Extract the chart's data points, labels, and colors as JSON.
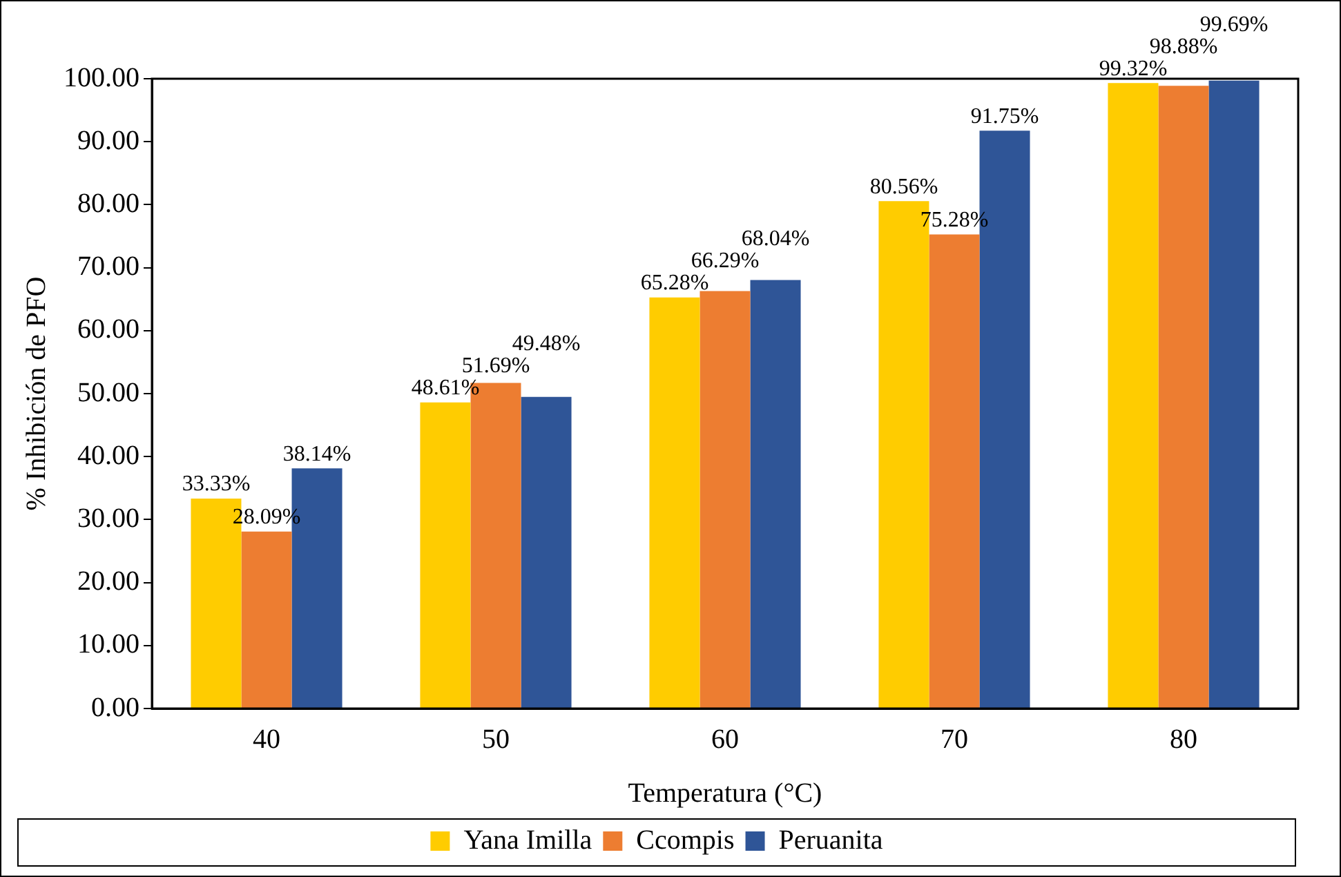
{
  "chart_data": {
    "type": "bar",
    "xlabel": "Temperatura (°C)",
    "ylabel": "% Inhibición de PFO",
    "categories": [
      "40",
      "50",
      "60",
      "70",
      "80"
    ],
    "series": [
      {
        "name": "Yana Imilla",
        "color": "#ffcc00",
        "values": [
          33.33,
          48.61,
          65.28,
          80.56,
          99.32
        ],
        "value_labels": [
          "33.33%",
          "48.61%",
          "65.28%",
          "80.56%",
          "99.32%"
        ]
      },
      {
        "name": "Ccompis",
        "color": "#ed7d31",
        "values": [
          28.09,
          51.69,
          66.29,
          75.28,
          98.88
        ],
        "value_labels": [
          "28.09%",
          "51.69%",
          "66.29%",
          "75.28%",
          "98.88%"
        ]
      },
      {
        "name": "Peruanita",
        "color": "#2f5597",
        "values": [
          38.14,
          49.48,
          68.04,
          91.75,
          99.69
        ],
        "value_labels": [
          "38.14%",
          "49.48%",
          "68.04%",
          "91.75%",
          "99.69%"
        ]
      }
    ],
    "ylim": [
      0,
      100
    ],
    "yticks": [
      {
        "value": 0,
        "label": "0.00"
      },
      {
        "value": 10,
        "label": "10.00"
      },
      {
        "value": 20,
        "label": "20.00"
      },
      {
        "value": 30,
        "label": "30.00"
      },
      {
        "value": 40,
        "label": "40.00"
      },
      {
        "value": 50,
        "label": "50.00"
      },
      {
        "value": 60,
        "label": "60.00"
      },
      {
        "value": 70,
        "label": "70.00"
      },
      {
        "value": 80,
        "label": "80.00"
      },
      {
        "value": 90,
        "label": "90.00"
      },
      {
        "value": 100,
        "label": "100.00"
      }
    ],
    "grid": false,
    "legend": "bottom"
  }
}
